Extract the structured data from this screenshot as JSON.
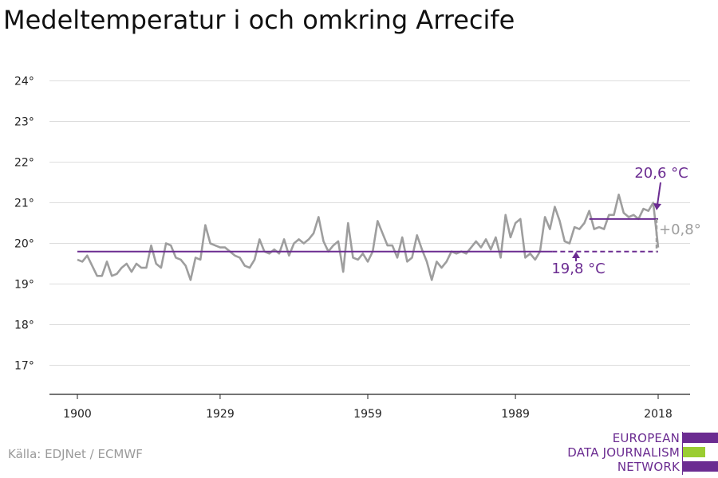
{
  "title": "Medeltemperatur i och omkring Arrecife",
  "source": "Källa: EDJNet / ECMWF",
  "logo": {
    "lines": [
      "EUROPEAN",
      "DATA JOURNALISM",
      "NETWORK"
    ]
  },
  "colors": {
    "series": "#9e9e9e",
    "accent": "#6b2c91",
    "logo_green": "#9acd32",
    "grid": "#dddddd",
    "axis": "#222222"
  },
  "chart_data": {
    "type": "line",
    "title": "Medeltemperatur i och omkring Arrecife",
    "xlabel": "",
    "ylabel": "",
    "xlim": [
      1900,
      2018
    ],
    "ylim": [
      16.25,
      24
    ],
    "x_ticks": [
      1900,
      1929,
      1959,
      1989,
      2018
    ],
    "x_tick_labels": [
      "1900",
      "1929",
      "1959",
      "1989",
      "2018"
    ],
    "y_ticks": [
      17,
      18,
      19,
      20,
      21,
      22,
      23,
      24
    ],
    "y_tick_labels": [
      "17°",
      "18°",
      "19°",
      "20°",
      "21°",
      "22°",
      "23°",
      "24°"
    ],
    "grid": true,
    "series": [
      {
        "x_start": 1900,
        "values": [
          19.6,
          19.55,
          19.7,
          19.45,
          19.2,
          19.2,
          19.55,
          19.2,
          19.25,
          19.4,
          19.5,
          19.3,
          19.5,
          19.4,
          19.4,
          19.95,
          19.5,
          19.4,
          20.0,
          19.95,
          19.65,
          19.6,
          19.45,
          19.1,
          19.65,
          19.6,
          20.45,
          20.0,
          19.95,
          19.9,
          19.9,
          19.8,
          19.7,
          19.65,
          19.45,
          19.4,
          19.6,
          20.1,
          19.8,
          19.75,
          19.85,
          19.75,
          20.1,
          19.7,
          20.0,
          20.1,
          20.0,
          20.1,
          20.25,
          20.65,
          20.05,
          19.8,
          19.95,
          20.05,
          19.3,
          20.5,
          19.65,
          19.6,
          19.75,
          19.55,
          19.8,
          20.55,
          20.25,
          19.95,
          19.95,
          19.65,
          20.15,
          19.55,
          19.65,
          20.2,
          19.85,
          19.55,
          19.1,
          19.55,
          19.4,
          19.55,
          19.8,
          19.75,
          19.8,
          19.75,
          19.9,
          20.05,
          19.9,
          20.1,
          19.85,
          20.15,
          19.65,
          20.7,
          20.15,
          20.5,
          20.6,
          19.65,
          19.75,
          19.6,
          19.8,
          20.65,
          20.35,
          20.9,
          20.55,
          20.05,
          20.0,
          20.4,
          20.35,
          20.5,
          20.8,
          20.35,
          20.4,
          20.35,
          20.7,
          20.7,
          21.2,
          20.75,
          20.65,
          20.7,
          20.6,
          20.85,
          20.8,
          21.0,
          19.9
        ]
      }
    ],
    "reference_lines": [
      {
        "label": "19,8 °C",
        "value": 19.8,
        "x_from": 1900,
        "x_to": 2018
      },
      {
        "label": "20,6 °C",
        "value": 20.6,
        "x_from": 2004,
        "x_to": 2018
      }
    ],
    "difference_label": "+0,8°"
  }
}
